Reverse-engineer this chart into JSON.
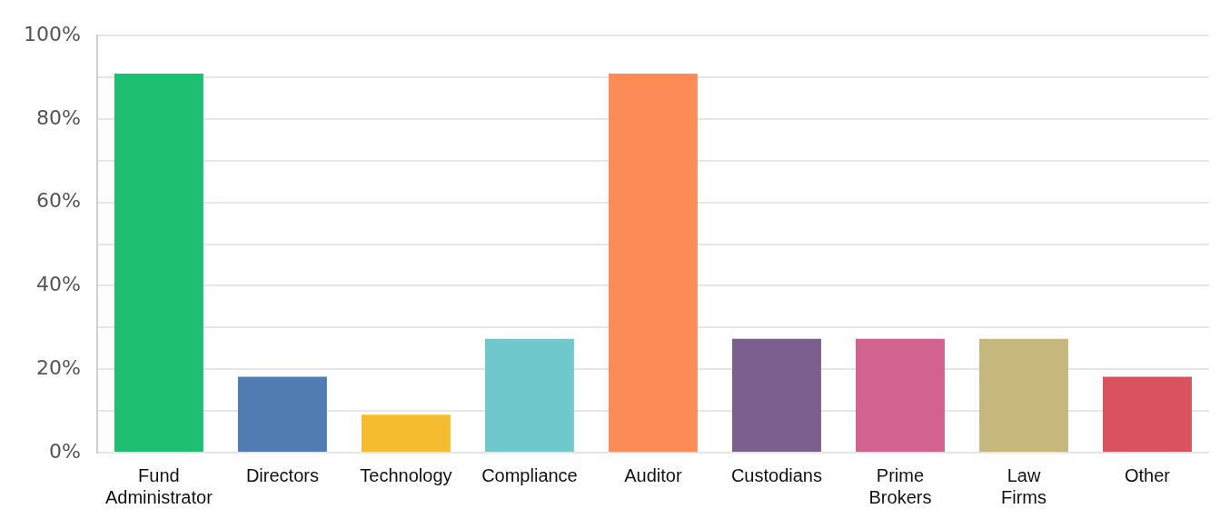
{
  "chart_data": {
    "type": "bar",
    "categories": [
      "Fund Administrator",
      "Directors",
      "Technology",
      "Compliance",
      "Auditor",
      "Custodians",
      "Prime Brokers",
      "Law Firms",
      "Other"
    ],
    "values": [
      90.9,
      18.2,
      9.1,
      27.3,
      90.9,
      27.3,
      27.3,
      27.3,
      18.2
    ],
    "colors": [
      "#1fbf71",
      "#507cb3",
      "#f6bc2f",
      "#6fc8cb",
      "#fd8b57",
      "#7d5f8f",
      "#d26290",
      "#c8b77c",
      "#d9525e"
    ],
    "ylim": [
      0,
      100
    ],
    "yticks": [
      {
        "value": 0,
        "label": "0%"
      },
      {
        "value": 10,
        "label": null
      },
      {
        "value": 20,
        "label": "20%"
      },
      {
        "value": 30,
        "label": null
      },
      {
        "value": 40,
        "label": "40%"
      },
      {
        "value": 50,
        "label": null
      },
      {
        "value": 60,
        "label": "60%"
      },
      {
        "value": 70,
        "label": null
      },
      {
        "value": 80,
        "label": "80%"
      },
      {
        "value": 90,
        "label": null
      },
      {
        "value": 100,
        "label": "100%"
      }
    ],
    "grid": "y",
    "legend": false
  }
}
